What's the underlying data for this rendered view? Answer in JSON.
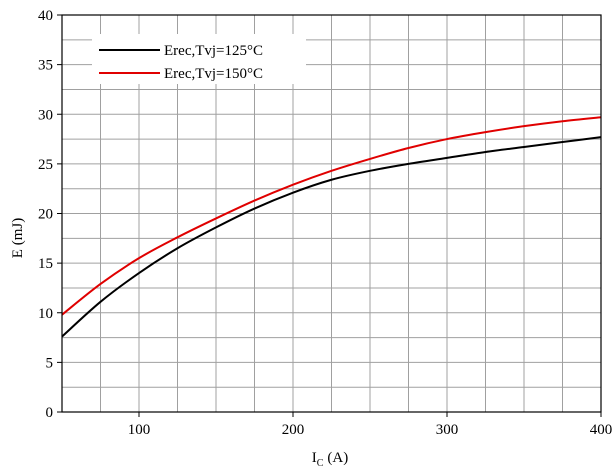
{
  "chart_data": {
    "type": "line",
    "xlabel": "I",
    "xlabel_sub": "C",
    "xlabel_unit": "(A)",
    "ylabel": "E (mJ)",
    "xlim": [
      50,
      400
    ],
    "ylim": [
      0,
      40
    ],
    "grid": true,
    "legend_position": "top-left",
    "x_ticks": [
      100,
      200,
      300,
      400
    ],
    "y_ticks": [
      0,
      5,
      10,
      15,
      20,
      25,
      30,
      35,
      40
    ],
    "series": [
      {
        "name": "Erec,Tvj=125°C",
        "color": "#000000",
        "x": [
          50,
          75,
          100,
          125,
          150,
          175,
          200,
          225,
          250,
          275,
          300,
          325,
          350,
          375,
          400
        ],
        "y": [
          7.6,
          11.1,
          14.0,
          16.5,
          18.6,
          20.5,
          22.1,
          23.4,
          24.3,
          25.0,
          25.6,
          26.2,
          26.7,
          27.2,
          27.7
        ]
      },
      {
        "name": "Erec,Tvj=150°C",
        "color": "#e00000",
        "x": [
          50,
          75,
          100,
          125,
          150,
          175,
          200,
          225,
          250,
          275,
          300,
          325,
          350,
          375,
          400
        ],
        "y": [
          9.8,
          12.9,
          15.5,
          17.6,
          19.5,
          21.3,
          22.9,
          24.3,
          25.5,
          26.6,
          27.5,
          28.2,
          28.8,
          29.3,
          29.7
        ]
      }
    ]
  }
}
